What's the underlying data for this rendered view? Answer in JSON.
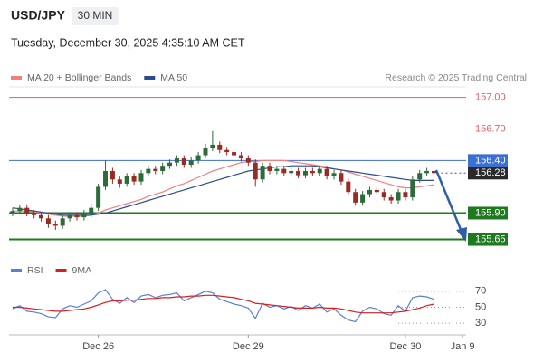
{
  "header": {
    "symbol": "USD/JPY",
    "interval": "30 MIN",
    "datetime": "Tuesday, December 30, 2025 4:35:10 AM CET",
    "source": "Research © 2025 Trading Central"
  },
  "chart_data": [
    {
      "type": "candlestick",
      "categories": [
        null,
        null,
        null,
        null,
        null,
        null,
        null,
        null,
        null,
        null,
        null,
        null,
        "Dec 26",
        null,
        null,
        null,
        null,
        null,
        null,
        null,
        null,
        null,
        null,
        null,
        null,
        null,
        null,
        null,
        null,
        null,
        null,
        null,
        null,
        "Dec 29",
        null,
        null,
        null,
        null,
        null,
        null,
        null,
        null,
        null,
        null,
        null,
        null,
        null,
        null,
        null,
        null,
        null,
        null,
        null,
        null,
        null,
        "Dec 30",
        null,
        null,
        null,
        null,
        null,
        null,
        null,
        "Jan 9"
      ],
      "open": [
        155.9,
        155.92,
        155.95,
        155.9,
        155.88,
        155.85,
        155.8,
        155.78,
        155.85,
        155.88,
        155.86,
        155.9,
        155.95,
        156.15,
        156.3,
        156.22,
        156.18,
        156.25,
        156.2,
        156.28,
        156.32,
        156.3,
        156.35,
        156.38,
        156.42,
        156.36,
        156.4,
        156.45,
        156.52,
        156.55,
        156.5,
        156.48,
        156.45,
        156.42,
        156.38,
        156.22,
        156.35,
        156.3,
        156.32,
        156.28,
        156.3,
        156.26,
        156.3,
        156.28,
        156.32,
        156.25,
        156.28,
        156.2,
        156.1,
        156.0,
        156.08,
        156.12,
        156.1,
        156.05,
        156.02,
        156.1,
        156.05,
        156.22,
        156.28,
        156.3,
        null,
        null,
        null,
        null
      ],
      "high": [
        155.95,
        155.98,
        155.98,
        155.93,
        155.91,
        155.88,
        155.83,
        155.88,
        155.91,
        155.91,
        155.93,
        155.99,
        156.18,
        156.4,
        156.33,
        156.25,
        156.28,
        156.28,
        156.31,
        156.35,
        156.35,
        156.38,
        156.41,
        156.45,
        156.45,
        156.43,
        156.48,
        156.56,
        156.68,
        156.58,
        156.53,
        156.51,
        156.48,
        156.45,
        156.41,
        156.38,
        156.38,
        156.35,
        156.35,
        156.33,
        156.33,
        156.33,
        156.33,
        156.35,
        156.35,
        156.31,
        156.31,
        156.23,
        156.13,
        156.11,
        156.15,
        156.15,
        156.13,
        156.08,
        156.13,
        156.13,
        156.25,
        156.31,
        156.33,
        156.33,
        null,
        null,
        null,
        null
      ],
      "low": [
        155.87,
        155.89,
        155.87,
        155.85,
        155.82,
        155.76,
        155.74,
        155.75,
        155.82,
        155.83,
        155.83,
        155.86,
        155.92,
        156.12,
        156.18,
        156.14,
        156.15,
        156.17,
        156.17,
        156.25,
        156.27,
        156.27,
        156.32,
        156.35,
        156.33,
        156.33,
        156.37,
        156.42,
        156.49,
        156.47,
        156.45,
        156.42,
        156.39,
        156.35,
        156.15,
        156.19,
        156.27,
        156.27,
        156.25,
        156.25,
        156.23,
        156.23,
        156.25,
        156.25,
        156.22,
        156.22,
        156.17,
        156.07,
        155.97,
        155.97,
        156.05,
        156.07,
        156.02,
        155.99,
        155.99,
        156.02,
        156.02,
        156.19,
        156.25,
        156.25,
        null,
        null,
        null,
        null
      ],
      "close": [
        155.92,
        155.95,
        155.9,
        155.88,
        155.85,
        155.8,
        155.78,
        155.85,
        155.88,
        155.86,
        155.9,
        155.95,
        156.15,
        156.3,
        156.22,
        156.18,
        156.25,
        156.2,
        156.28,
        156.32,
        156.3,
        156.35,
        156.38,
        156.42,
        156.36,
        156.4,
        156.45,
        156.52,
        156.55,
        156.5,
        156.48,
        156.45,
        156.42,
        156.38,
        156.22,
        156.35,
        156.3,
        156.32,
        156.28,
        156.3,
        156.26,
        156.3,
        156.28,
        156.32,
        156.25,
        156.28,
        156.2,
        156.1,
        156.0,
        156.08,
        156.12,
        156.1,
        156.05,
        156.02,
        156.1,
        156.05,
        156.22,
        156.28,
        156.3,
        156.28,
        null,
        null,
        null,
        null
      ],
      "up_color": "#2e6b3a",
      "down_color": "#9b2a22",
      "series": [
        {
          "name": "MA 20 + Bollinger Bands",
          "color": "#f08080",
          "values": [
            155.92,
            155.92,
            155.92,
            155.91,
            155.9,
            155.89,
            155.88,
            155.87,
            155.87,
            155.87,
            155.87,
            155.88,
            155.9,
            155.93,
            155.95,
            155.97,
            155.99,
            156.01,
            156.03,
            156.06,
            156.08,
            156.1,
            156.13,
            156.16,
            156.18,
            156.21,
            156.24,
            156.27,
            156.3,
            156.32,
            156.34,
            156.36,
            156.38,
            156.39,
            156.39,
            156.4,
            156.4,
            156.4,
            156.4,
            156.39,
            156.38,
            156.37,
            156.36,
            156.35,
            156.34,
            156.32,
            156.31,
            156.29,
            156.27,
            156.25,
            156.23,
            156.21,
            156.19,
            156.17,
            156.15,
            156.14,
            156.14,
            156.15,
            156.16,
            156.17,
            null,
            null,
            null,
            null
          ]
        },
        {
          "name": "MA 50",
          "color": "#2b4c8c",
          "values": [
            155.95,
            155.94,
            155.93,
            155.92,
            155.91,
            155.9,
            155.89,
            155.88,
            155.88,
            155.88,
            155.88,
            155.88,
            155.89,
            155.9,
            155.92,
            155.94,
            155.96,
            155.98,
            156.0,
            156.02,
            156.04,
            156.06,
            156.08,
            156.1,
            156.12,
            156.14,
            156.16,
            156.18,
            156.2,
            156.22,
            156.24,
            156.26,
            156.28,
            156.3,
            156.31,
            156.32,
            156.33,
            156.34,
            156.34,
            156.35,
            156.35,
            156.35,
            156.35,
            156.34,
            156.33,
            156.32,
            156.31,
            156.3,
            156.29,
            156.28,
            156.27,
            156.26,
            156.25,
            156.24,
            156.23,
            156.22,
            156.21,
            156.21,
            156.21,
            156.21,
            null,
            null,
            null,
            null
          ]
        }
      ],
      "levels": [
        {
          "value": 157.0,
          "label": "157.00",
          "color": "#e06060",
          "kind": "resistance"
        },
        {
          "value": 156.7,
          "label": "156.70",
          "color": "#e06060",
          "kind": "resistance"
        },
        {
          "value": 156.4,
          "label": "156.40",
          "color": "#3b6fd0",
          "kind": "pivot"
        },
        {
          "value": 156.28,
          "label": "156.28",
          "color": "#2a2a2a",
          "kind": "last"
        },
        {
          "value": 155.9,
          "label": "155.90",
          "color": "#1e7a1e",
          "kind": "support"
        },
        {
          "value": 155.65,
          "label": "155.65",
          "color": "#1e7a1e",
          "kind": "support"
        }
      ],
      "ylim": [
        155.56,
        157.1
      ]
    },
    {
      "type": "line",
      "series": [
        {
          "name": "RSI",
          "color": "#5b7fd6",
          "values": [
            48,
            52,
            45,
            44,
            42,
            38,
            37,
            48,
            52,
            50,
            54,
            58,
            68,
            72,
            60,
            55,
            62,
            56,
            64,
            66,
            62,
            65,
            66,
            68,
            58,
            62,
            66,
            70,
            68,
            60,
            57,
            54,
            52,
            49,
            36,
            55,
            50,
            52,
            48,
            51,
            46,
            52,
            49,
            54,
            44,
            48,
            40,
            34,
            32,
            45,
            50,
            48,
            42,
            40,
            52,
            45,
            62,
            64,
            63,
            60,
            null,
            null,
            null,
            null
          ]
        },
        {
          "name": "9MA",
          "color": "#d42020",
          "values": [
            50,
            50,
            49,
            48,
            47,
            46,
            45,
            45,
            46,
            47,
            48,
            50,
            53,
            56,
            58,
            58,
            59,
            59,
            60,
            61,
            61,
            62,
            62,
            63,
            63,
            64,
            64,
            65,
            65,
            64,
            63,
            62,
            60,
            58,
            55,
            54,
            53,
            52,
            51,
            50,
            49,
            49,
            49,
            50,
            49,
            49,
            48,
            46,
            44,
            43,
            43,
            43,
            43,
            43,
            44,
            45,
            47,
            49,
            52,
            54,
            null,
            null,
            null,
            null
          ]
        }
      ],
      "ylim": [
        20,
        80
      ],
      "yticks": [
        30,
        50,
        70
      ]
    }
  ]
}
